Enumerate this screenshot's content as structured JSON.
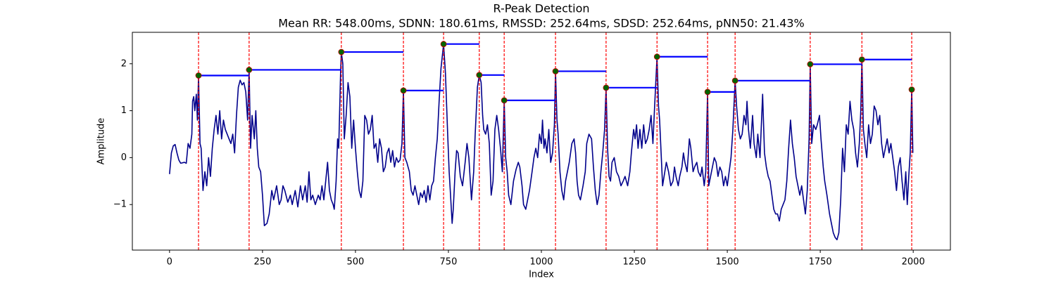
{
  "chart_data": {
    "type": "line",
    "title": "R-Peak Detection",
    "subtitle": "Mean RR: 548.00ms, SDNN: 180.61ms, RMSSD: 252.64ms, SDSD: 252.64ms, pNN50: 21.43%",
    "xlabel": "Index",
    "ylabel": "Amplitude",
    "color": "#00008b",
    "x": [
      0,
      5,
      10,
      15,
      20,
      25,
      30,
      40,
      45,
      50,
      55,
      60,
      62,
      65,
      68,
      72,
      75,
      78,
      82,
      85,
      90,
      95,
      100,
      105,
      110,
      115,
      120,
      125,
      130,
      135,
      140,
      145,
      150,
      155,
      160,
      165,
      170,
      175,
      180,
      185,
      190,
      195,
      200,
      205,
      210,
      214,
      218,
      222,
      228,
      232,
      236,
      240,
      245,
      250,
      255,
      262,
      268,
      275,
      280,
      288,
      295,
      300,
      305,
      310,
      318,
      325,
      330,
      338,
      345,
      352,
      358,
      365,
      370,
      375,
      380,
      385,
      392,
      400,
      405,
      410,
      415,
      420,
      425,
      430,
      435,
      440,
      443,
      448,
      452,
      455,
      460,
      462,
      466,
      470,
      475,
      480,
      485,
      490,
      495,
      500,
      505,
      510,
      515,
      520,
      525,
      530,
      535,
      540,
      545,
      550,
      555,
      560,
      565,
      570,
      575,
      580,
      585,
      590,
      595,
      600,
      605,
      610,
      615,
      620,
      625,
      629,
      633,
      638,
      645,
      650,
      655,
      660,
      665,
      670,
      675,
      680,
      685,
      690,
      695,
      700,
      705,
      710,
      715,
      720,
      725,
      730,
      737,
      742,
      748,
      752,
      755,
      760,
      763,
      768,
      772,
      776,
      782,
      788,
      795,
      800,
      805,
      812,
      818,
      822,
      828,
      833,
      838,
      842,
      845,
      850,
      855,
      860,
      865,
      870,
      875,
      880,
      885,
      890,
      895,
      900,
      904,
      908,
      912,
      918,
      925,
      932,
      938,
      942,
      948,
      952,
      958,
      963,
      968,
      975,
      980,
      985,
      990,
      995,
      1000,
      1003,
      1007,
      1010,
      1015,
      1020,
      1025,
      1030,
      1035,
      1038,
      1042,
      1045,
      1050,
      1055,
      1060,
      1065,
      1070,
      1075,
      1082,
      1088,
      1092,
      1096,
      1100,
      1105,
      1112,
      1118,
      1122,
      1128,
      1135,
      1140,
      1145,
      1150,
      1155,
      1160,
      1165,
      1170,
      1174,
      1178,
      1182,
      1186,
      1190,
      1196,
      1202,
      1208,
      1214,
      1220,
      1225,
      1232,
      1238,
      1242,
      1248,
      1252,
      1256,
      1260,
      1265,
      1270,
      1275,
      1280,
      1285,
      1290,
      1295,
      1300,
      1304,
      1311,
      1315,
      1318,
      1322,
      1326,
      1330,
      1336,
      1342,
      1348,
      1354,
      1358,
      1362,
      1368,
      1372,
      1378,
      1382,
      1386,
      1392,
      1398,
      1402,
      1408,
      1412,
      1418,
      1422,
      1428,
      1432,
      1438,
      1442,
      1447,
      1450,
      1455,
      1460,
      1465,
      1470,
      1475,
      1480,
      1485,
      1490,
      1495,
      1500,
      1505,
      1510,
      1515,
      1521,
      1525,
      1530,
      1535,
      1540,
      1545,
      1550,
      1553,
      1557,
      1562,
      1568,
      1572,
      1578,
      1582,
      1588,
      1595,
      1600,
      1605,
      1610,
      1615,
      1620,
      1625,
      1630,
      1635,
      1640,
      1645,
      1650,
      1655,
      1660,
      1665,
      1670,
      1675,
      1680,
      1685,
      1690,
      1695,
      1700,
      1705,
      1710,
      1715,
      1720,
      1723,
      1727,
      1732,
      1738,
      1742,
      1748,
      1752,
      1758,
      1762,
      1768,
      1775,
      1780,
      1785,
      1790,
      1795,
      1800,
      1805,
      1810,
      1815,
      1820,
      1825,
      1830,
      1835,
      1840,
      1845,
      1850,
      1855,
      1859,
      1862,
      1866,
      1870,
      1875,
      1880,
      1885,
      1890,
      1895,
      1900,
      1905,
      1910,
      1915,
      1920,
      1925,
      1930,
      1935,
      1940,
      1945,
      1950,
      1955,
      1960,
      1965,
      1970,
      1975,
      1980,
      1984,
      1988,
      1992,
      1996,
      1999
    ],
    "values": [
      -0.35,
      0.1,
      0.25,
      0.28,
      0.1,
      -0.05,
      -0.12,
      -0.1,
      -0.12,
      0.3,
      0.2,
      0.5,
      1.2,
      1.3,
      1.0,
      1.35,
      0.8,
      1.75,
      0.3,
      0.2,
      -0.7,
      -0.3,
      -0.6,
      0.0,
      -0.4,
      0.2,
      0.6,
      0.9,
      0.5,
      1.0,
      0.4,
      0.8,
      0.6,
      0.5,
      0.4,
      0.3,
      0.5,
      0.1,
      0.9,
      1.5,
      1.65,
      1.55,
      1.6,
      1.4,
      0.8,
      1.87,
      0.2,
      0.9,
      0.4,
      1.0,
      0.2,
      -0.2,
      -0.3,
      -0.8,
      -1.45,
      -1.4,
      -1.2,
      -0.7,
      -0.9,
      -0.6,
      -1.0,
      -0.9,
      -0.6,
      -0.7,
      -0.95,
      -0.8,
      -1.0,
      -0.7,
      -1.05,
      -0.6,
      -0.9,
      -0.6,
      -0.95,
      -0.3,
      -0.9,
      -0.8,
      -1.0,
      -0.8,
      -0.9,
      -0.6,
      -0.9,
      -0.5,
      -0.1,
      -0.7,
      -0.9,
      -1.0,
      -1.1,
      -0.5,
      0.4,
      0.2,
      1.8,
      2.25,
      2.0,
      0.4,
      0.9,
      1.6,
      1.3,
      0.2,
      0.8,
      0.2,
      -0.3,
      -0.7,
      -0.85,
      -0.5,
      0.9,
      0.8,
      0.5,
      0.6,
      0.9,
      0.2,
      0.3,
      -0.1,
      0.4,
      0.2,
      -0.3,
      -0.2,
      0.1,
      0.2,
      -0.1,
      0.15,
      -0.2,
      0.0,
      -0.1,
      -0.05,
      0.3,
      1.43,
      0.0,
      -0.1,
      -0.3,
      -0.7,
      -0.8,
      -0.6,
      -0.8,
      -1.0,
      -0.75,
      -0.85,
      -0.7,
      -0.95,
      -0.6,
      -0.9,
      -0.6,
      -0.5,
      0.0,
      0.4,
      1.2,
      1.9,
      2.42,
      1.8,
      0.5,
      -0.3,
      -0.7,
      -1.4,
      -1.1,
      -0.3,
      0.15,
      0.1,
      -0.4,
      -0.6,
      -0.1,
      0.3,
      0.0,
      -0.9,
      -0.3,
      0.5,
      1.5,
      1.76,
      1.6,
      0.9,
      0.6,
      0.5,
      0.7,
      0.3,
      -0.8,
      -0.5,
      0.6,
      0.9,
      0.6,
      0.2,
      -0.3,
      1.22,
      0.0,
      -0.3,
      -0.8,
      -1.0,
      -0.5,
      -0.25,
      -0.1,
      -0.2,
      -0.6,
      -1.0,
      -1.1,
      -0.9,
      -0.7,
      -0.3,
      0.0,
      0.2,
      0.0,
      0.5,
      0.3,
      0.8,
      0.2,
      0.4,
      0.1,
      0.6,
      -0.1,
      0.1,
      0.7,
      1.84,
      0.8,
      0.5,
      -0.3,
      -0.7,
      -0.9,
      -0.5,
      -0.3,
      -0.1,
      0.3,
      0.4,
      0.1,
      -0.5,
      -0.8,
      -0.9,
      -0.6,
      -0.3,
      0.3,
      0.5,
      0.4,
      -0.2,
      -0.7,
      -1.0,
      -0.8,
      -0.3,
      0.1,
      0.6,
      1.49,
      0.2,
      -0.4,
      -0.5,
      -0.1,
      0.0,
      -0.3,
      -0.4,
      -0.6,
      -0.5,
      -0.4,
      -0.6,
      -0.3,
      0.1,
      0.6,
      0.4,
      0.7,
      0.2,
      0.6,
      0.2,
      0.7,
      0.3,
      0.4,
      0.6,
      0.9,
      0.3,
      1.0,
      2.15,
      1.1,
      0.8,
      0.1,
      -0.6,
      -0.4,
      -0.1,
      -0.3,
      -0.6,
      -0.5,
      -0.2,
      -0.4,
      -0.6,
      -0.4,
      -0.2,
      0.1,
      -0.1,
      -0.3,
      0.4,
      0.2,
      -0.3,
      -0.2,
      -0.1,
      -0.3,
      -0.4,
      -0.2,
      -0.6,
      -0.3,
      1.4,
      -0.6,
      -0.4,
      -0.2,
      0.0,
      -0.1,
      -0.4,
      -0.2,
      -0.3,
      -0.6,
      -0.4,
      -0.6,
      -0.3,
      0.0,
      0.6,
      1.64,
      1.1,
      0.6,
      0.4,
      0.5,
      0.9,
      0.7,
      1.2,
      0.6,
      0.2,
      0.9,
      0.3,
      0.0,
      0.5,
      0.0,
      1.35,
      0.1,
      -0.2,
      -0.4,
      -0.5,
      -0.8,
      -1.1,
      -1.2,
      -1.2,
      -1.35,
      -1.1,
      -1.0,
      -0.9,
      -0.5,
      0.2,
      0.8,
      0.3,
      0.0,
      -0.4,
      -0.6,
      -0.8,
      -0.6,
      -0.9,
      -1.2,
      -0.7,
      0.4,
      1.99,
      0.3,
      0.7,
      0.6,
      0.7,
      0.9,
      0.4,
      -0.2,
      -0.5,
      -0.8,
      -1.2,
      -1.4,
      -1.6,
      -1.7,
      -1.75,
      -1.6,
      -0.9,
      0.2,
      -0.3,
      0.7,
      0.5,
      1.2,
      0.8,
      0.6,
      0.1,
      -0.2,
      0.3,
      1.0,
      2.09,
      0.6,
      0.3,
      0.0,
      0.7,
      0.3,
      0.5,
      1.1,
      1.0,
      0.7,
      0.9,
      0.3,
      0.0,
      0.2,
      0.4,
      0.1,
      0.3,
      0.0,
      -0.3,
      -0.7,
      -0.2,
      0.0,
      -0.5,
      -0.9,
      -0.3,
      -1.0,
      -0.4,
      0.1,
      1.45,
      0.1
    ],
    "peaks": {
      "x": [
        78,
        214,
        462,
        629,
        737,
        833,
        900,
        1038,
        1174,
        1311,
        1447,
        1521,
        1723,
        1862,
        1996
      ],
      "values": [
        1.75,
        1.87,
        2.25,
        1.43,
        2.42,
        1.76,
        1.22,
        1.84,
        1.49,
        2.15,
        1.4,
        1.64,
        1.99,
        2.09,
        1.45
      ],
      "color": "#006400",
      "edge_color": "#cc0000",
      "line_color": "#ff0000",
      "interval_color": "#0000ff"
    },
    "xlim": [
      -100,
      2100
    ],
    "ylim": [
      -1.97,
      2.67
    ],
    "xticks": [
      0,
      250,
      500,
      750,
      1000,
      1250,
      1500,
      1750,
      2000
    ],
    "yticks": [
      {
        "value": -1,
        "label": "−1"
      },
      0,
      1,
      2
    ]
  }
}
